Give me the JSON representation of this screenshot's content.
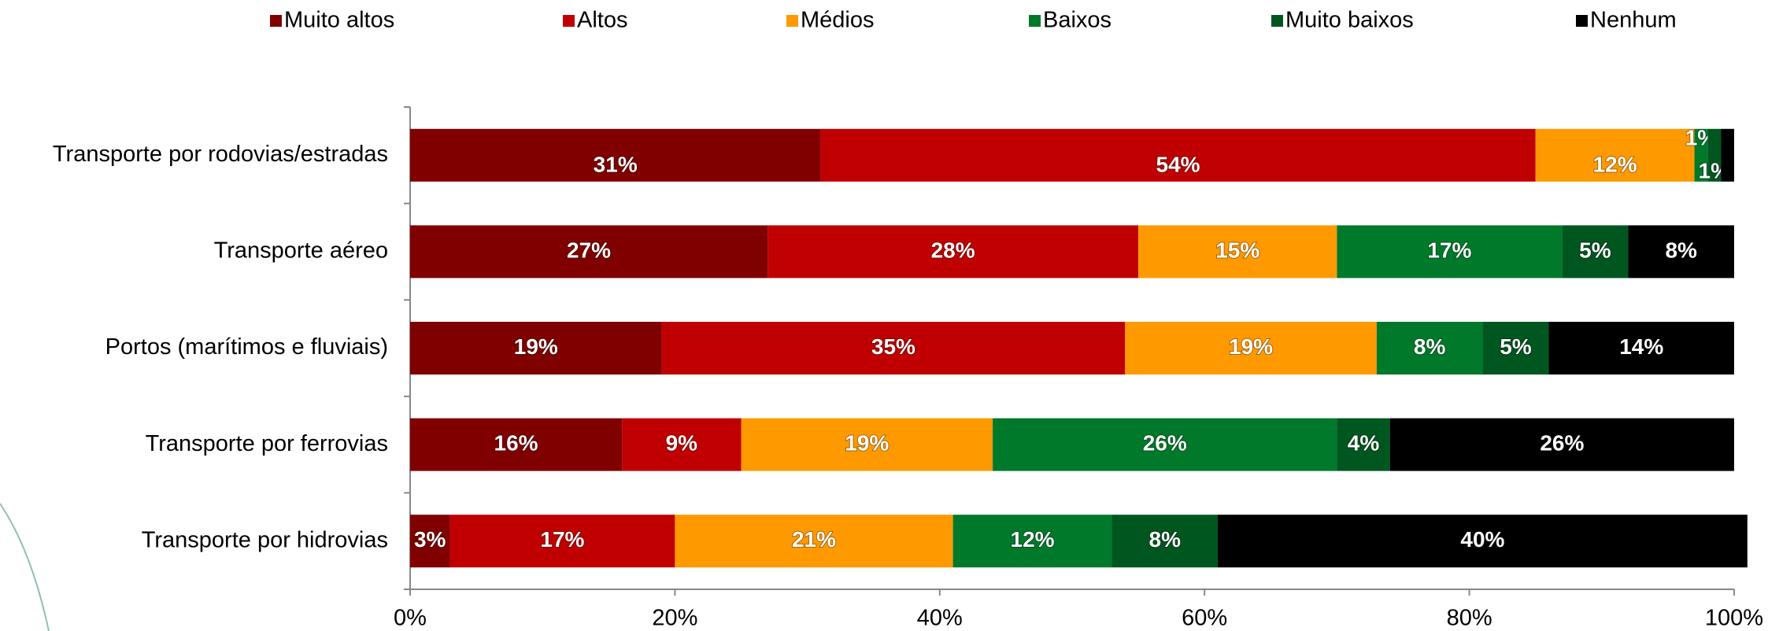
{
  "chart_data": {
    "type": "stacked-bar-horizontal",
    "categories": [
      "Transporte por rodovias/estradas",
      "Transporte aéreo",
      "Portos (marítimos e fluviais)",
      "Transporte por ferrovias",
      "Transporte por hidrovias"
    ],
    "series": [
      {
        "name": "Muito altos",
        "color": "#800000",
        "values": [
          31,
          27,
          19,
          16,
          3
        ],
        "value_labels": [
          "31%",
          "27%",
          "19%",
          "16%",
          "3%"
        ]
      },
      {
        "name": "Altos",
        "color": "#c00000",
        "values": [
          54,
          28,
          35,
          9,
          17
        ],
        "value_labels": [
          "54%",
          "28%",
          "35%",
          "9%",
          "17%"
        ]
      },
      {
        "name": "Médios",
        "color": "#ff9900",
        "values": [
          12,
          15,
          19,
          19,
          21
        ],
        "value_labels": [
          "12%",
          "15%",
          "19%",
          "19%",
          "21%"
        ]
      },
      {
        "name": "Baixos",
        "color": "#00792b",
        "values": [
          1,
          17,
          8,
          26,
          12
        ],
        "value_labels": [
          "1%",
          "17%",
          "8%",
          "26%",
          "12%"
        ]
      },
      {
        "name": "Muito baixos",
        "color": "#00561f",
        "values": [
          1,
          5,
          5,
          4,
          8
        ],
        "value_labels": [
          "1%",
          "5%",
          "5%",
          "4%",
          "8%"
        ]
      },
      {
        "name": "Nenhum",
        "color": "#000000",
        "values": [
          1,
          8,
          14,
          26,
          40
        ],
        "value_labels": [
          null,
          "8%",
          "14%",
          "26%",
          "40%"
        ]
      }
    ],
    "xlim": [
      0,
      100
    ],
    "xticks": [
      {
        "value": 0,
        "label": "0%"
      },
      {
        "value": 20,
        "label": "20%"
      },
      {
        "value": 40,
        "label": "40%"
      },
      {
        "value": 60,
        "label": "60%"
      },
      {
        "value": 80,
        "label": "80%"
      },
      {
        "value": 100,
        "label": "100%"
      }
    ],
    "legend": "top"
  }
}
